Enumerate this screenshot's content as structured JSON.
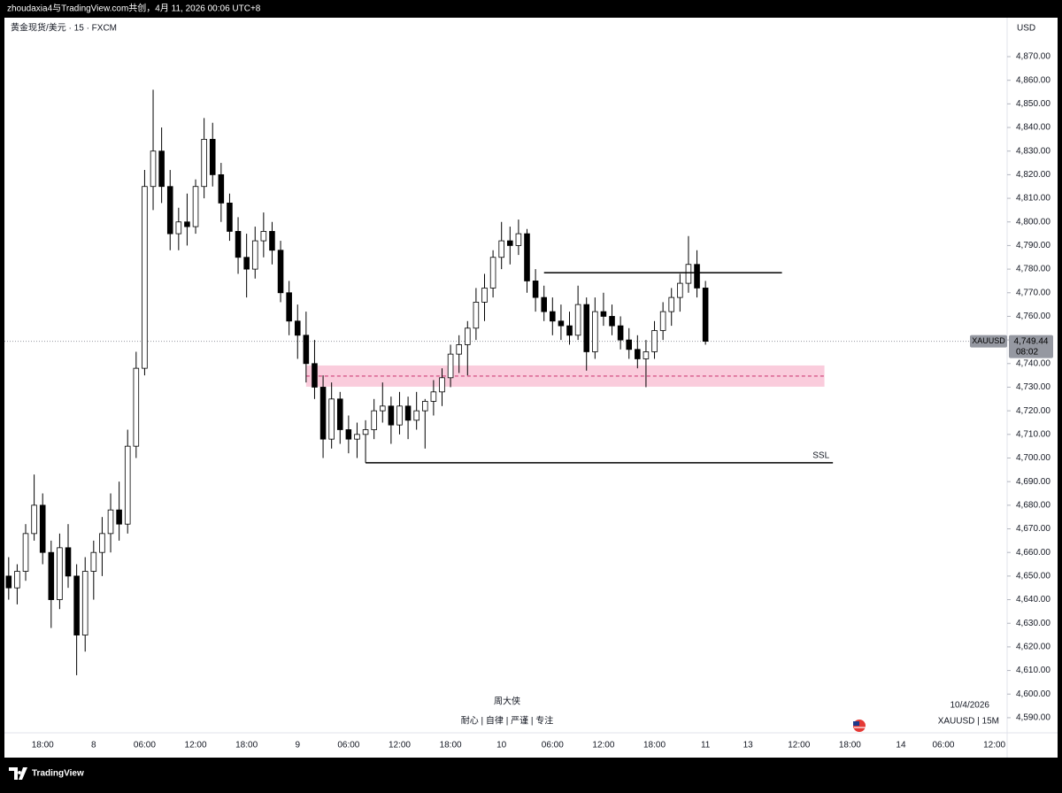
{
  "header": "zhoudaxia4与TradingView.com共创，4月 11, 2026 00:06 UTC+8",
  "footer_brand": "TradingView",
  "chart_data": {
    "type": "candlestick",
    "symbol_title": "黄金现货/美元 · 15 · FXCM",
    "currency": "USD",
    "watermark": {
      "title": "周大侠",
      "subtitle": "耐心 | 自律 | 严谨 | 专注"
    },
    "corner_info": {
      "date": "10/4/2026",
      "symbol": "XAUUSD | 15M"
    },
    "up_color": "#ffffff",
    "down_color": "#000000",
    "wick_color": "#000000",
    "grid": false,
    "ylim": [
      4583.6,
      4886.5
    ],
    "yticks": [
      {
        "value": 4590,
        "label": "4,590.00"
      },
      {
        "value": 4600,
        "label": "4,600.00"
      },
      {
        "value": 4610,
        "label": "4,610.00"
      },
      {
        "value": 4620,
        "label": "4,620.00"
      },
      {
        "value": 4630,
        "label": "4,630.00"
      },
      {
        "value": 4640,
        "label": "4,640.00"
      },
      {
        "value": 4650,
        "label": "4,650.00"
      },
      {
        "value": 4660,
        "label": "4,660.00"
      },
      {
        "value": 4670,
        "label": "4,670.00"
      },
      {
        "value": 4680,
        "label": "4,680.00"
      },
      {
        "value": 4690,
        "label": "4,690.00"
      },
      {
        "value": 4700,
        "label": "4,700.00"
      },
      {
        "value": 4710,
        "label": "4,710.00"
      },
      {
        "value": 4720,
        "label": "4,720.00"
      },
      {
        "value": 4730,
        "label": "4,730.00"
      },
      {
        "value": 4740,
        "label": "4,740.00"
      },
      {
        "value": 4750,
        "label": "4,750.00"
      },
      {
        "value": 4760,
        "label": "4,760.00"
      },
      {
        "value": 4770,
        "label": "4,770.00"
      },
      {
        "value": 4780,
        "label": "4,780.00"
      },
      {
        "value": 4790,
        "label": "4,790.00"
      },
      {
        "value": 4800,
        "label": "4,800.00"
      },
      {
        "value": 4810,
        "label": "4,810.00"
      },
      {
        "value": 4820,
        "label": "4,820.00"
      },
      {
        "value": 4830,
        "label": "4,830.00"
      },
      {
        "value": 4840,
        "label": "4,840.00"
      },
      {
        "value": 4850,
        "label": "4,850.00"
      },
      {
        "value": 4860,
        "label": "4,860.00"
      },
      {
        "value": 4870,
        "label": "4,870.00"
      }
    ],
    "categories": [
      null,
      null,
      null,
      null,
      "18:00",
      null,
      null,
      null,
      null,
      null,
      "8",
      null,
      null,
      null,
      null,
      null,
      "06:00",
      null,
      null,
      null,
      null,
      null,
      "12:00",
      null,
      null,
      null,
      null,
      null,
      "18:00",
      null,
      null,
      null,
      null,
      null,
      "9",
      null,
      null,
      null,
      null,
      null,
      "06:00",
      null,
      null,
      null,
      null,
      null,
      "12:00",
      null,
      null,
      null,
      null,
      null,
      "18:00",
      null,
      null,
      null,
      null,
      null,
      "10",
      null,
      null,
      null,
      null,
      null,
      "06:00",
      null,
      null,
      null,
      null,
      null,
      "12:00",
      null,
      null,
      null,
      null,
      null,
      "18:00",
      null,
      null,
      null,
      null,
      null,
      "11",
      null,
      null,
      null,
      null,
      "13",
      null,
      null,
      null,
      null,
      null,
      "12:00",
      null,
      null,
      null,
      null,
      null,
      "18:00",
      null,
      null,
      null,
      null,
      null,
      "14",
      null,
      null,
      null,
      null,
      "06:00",
      null,
      null,
      null,
      null,
      null,
      "12:00",
      null
    ],
    "open": [
      4650,
      4645,
      4652,
      4668,
      4680,
      4660,
      4640,
      4662,
      4650,
      4625,
      4652,
      4660,
      4668,
      4678,
      4672,
      4705,
      4738,
      4815,
      4830,
      4815,
      4795,
      4800,
      4798,
      4815,
      4835,
      4820,
      4808,
      4796,
      4785,
      4780,
      4792,
      4796,
      4788,
      4770,
      4758,
      4752,
      4740,
      4730,
      4708,
      4725,
      4712,
      4708,
      4710,
      4712,
      4720,
      4722,
      4714,
      4722,
      4716,
      4720,
      4724,
      4728,
      4734,
      4744,
      4748,
      4755,
      4766,
      4772,
      4785,
      4792,
      4790,
      4795,
      4775,
      4768,
      4762,
      4758,
      4756,
      4752,
      4765,
      4745,
      4762,
      4760,
      4756,
      4750,
      4746,
      4742,
      4745,
      4754,
      4762,
      4768,
      4774,
      4782,
      4772,
      null,
      null,
      null,
      null,
      null,
      null,
      null,
      null,
      null,
      null,
      null,
      null,
      null,
      null,
      null,
      null,
      null,
      null,
      null,
      null,
      null,
      null,
      null,
      null,
      null,
      null,
      null,
      null,
      null,
      null,
      null,
      null,
      null,
      null,
      null
    ],
    "high": [
      4658,
      4655,
      4672,
      4693,
      4685,
      4665,
      4668,
      4672,
      4655,
      4658,
      4665,
      4675,
      4685,
      4690,
      4712,
      4745,
      4822,
      4856,
      4840,
      4822,
      4806,
      4812,
      4818,
      4844,
      4842,
      4825,
      4812,
      4802,
      4795,
      4798,
      4804,
      4800,
      4792,
      4775,
      4765,
      4762,
      4750,
      4735,
      4732,
      4728,
      4718,
      4715,
      4716,
      4725,
      4732,
      4726,
      4728,
      4726,
      4728,
      4725,
      4733,
      4738,
      4748,
      4752,
      4758,
      4772,
      4778,
      4788,
      4800,
      4798,
      4801,
      4797,
      4780,
      4773,
      4768,
      4765,
      4762,
      4773,
      4768,
      4768,
      4770,
      4765,
      4760,
      4755,
      4752,
      4750,
      4758,
      4766,
      4772,
      4778,
      4794,
      4788,
      4775,
      null,
      null,
      null,
      null,
      null,
      null,
      null,
      null,
      null,
      null,
      null,
      null,
      null,
      null,
      null,
      null,
      null,
      null,
      null,
      null,
      null,
      null,
      null,
      null,
      null,
      null,
      null,
      null,
      null,
      null,
      null,
      null,
      null,
      null,
      null
    ],
    "low": [
      4640,
      4638,
      4648,
      4665,
      4655,
      4628,
      4636,
      4645,
      4608,
      4618,
      4640,
      4650,
      4660,
      4665,
      4668,
      4700,
      4735,
      4805,
      4808,
      4788,
      4788,
      4790,
      4795,
      4810,
      4815,
      4800,
      4792,
      4778,
      4768,
      4776,
      4785,
      4782,
      4766,
      4752,
      4742,
      4732,
      4725,
      4700,
      4704,
      4706,
      4702,
      4700,
      4698,
      4708,
      4715,
      4706,
      4710,
      4708,
      4712,
      4704,
      4718,
      4722,
      4730,
      4736,
      4735,
      4750,
      4758,
      4768,
      4780,
      4782,
      4786,
      4770,
      4762,
      4758,
      4752,
      4750,
      4748,
      4750,
      4737,
      4742,
      4756,
      4752,
      4746,
      4742,
      4738,
      4730,
      4742,
      4750,
      4756,
      4762,
      4770,
      4768,
      4748,
      null,
      null,
      null,
      null,
      null,
      null,
      null,
      null,
      null,
      null,
      null,
      null,
      null,
      null,
      null,
      null,
      null,
      null,
      null,
      null,
      null,
      null,
      null,
      null,
      null,
      null,
      null,
      null,
      null,
      null,
      null,
      null,
      null,
      null,
      null
    ],
    "close": [
      4645,
      4652,
      4668,
      4680,
      4660,
      4640,
      4662,
      4650,
      4625,
      4652,
      4660,
      4668,
      4678,
      4672,
      4705,
      4738,
      4815,
      4830,
      4815,
      4795,
      4800,
      4798,
      4815,
      4835,
      4820,
      4808,
      4796,
      4785,
      4780,
      4792,
      4796,
      4788,
      4770,
      4758,
      4752,
      4740,
      4730,
      4708,
      4725,
      4712,
      4708,
      4710,
      4712,
      4720,
      4722,
      4714,
      4722,
      4716,
      4720,
      4724,
      4728,
      4734,
      4744,
      4748,
      4755,
      4766,
      4772,
      4785,
      4792,
      4790,
      4795,
      4775,
      4768,
      4762,
      4758,
      4756,
      4752,
      4765,
      4745,
      4762,
      4760,
      4756,
      4750,
      4746,
      4742,
      4745,
      4754,
      4762,
      4768,
      4774,
      4782,
      4772,
      4749.44,
      null,
      null,
      null,
      null,
      null,
      null,
      null,
      null,
      null,
      null,
      null,
      null,
      null,
      null,
      null,
      null,
      null,
      null,
      null,
      null,
      null,
      null,
      null,
      null,
      null,
      null,
      null,
      null,
      null,
      null,
      null,
      null,
      null,
      null,
      null
    ],
    "last_price": {
      "symbol": "XAUUSD",
      "value": 4749.44,
      "label": "4,749.44",
      "countdown": "08:02"
    },
    "annotations": {
      "resistance": 4778.5,
      "zone": {
        "low": 4730.2,
        "high": 4739.2,
        "mid": 4734.7,
        "color": "#f8bbd0"
      },
      "ssl": {
        "label": "SSL",
        "price": 4698
      }
    }
  }
}
